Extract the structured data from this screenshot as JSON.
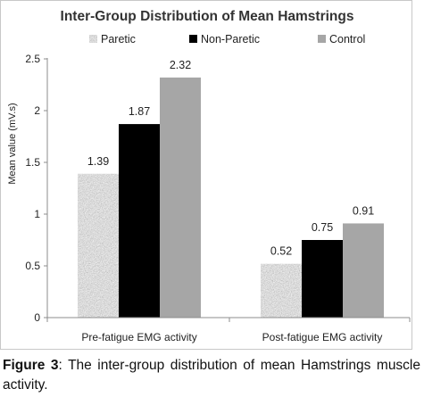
{
  "caption": {
    "label": "Figure 3",
    "text": ": The inter-group distribution of mean Hamstrings muscle activity."
  },
  "colors": {
    "paretic": "#aaaaaa",
    "non_paretic": "#000000",
    "control": "#a6a6a6",
    "axis": "#8c8c8c"
  },
  "chart_data": {
    "type": "bar",
    "title": "Inter-Group Distribution of Mean Hamstrings",
    "xlabel": "",
    "ylabel": "Mean value (mV.s)",
    "categories": [
      "Pre-fatigue EMG activity",
      "Post-fatigue EMG activity"
    ],
    "series": [
      {
        "name": "Paretic",
        "values": [
          1.39,
          0.52
        ],
        "labels": [
          "1.39",
          "0.52"
        ]
      },
      {
        "name": "Non-Paretic",
        "values": [
          1.87,
          0.75
        ],
        "labels": [
          "1.87",
          "0.75"
        ]
      },
      {
        "name": "Control",
        "values": [
          2.32,
          0.91
        ],
        "labels": [
          "2.32",
          "0.91"
        ]
      }
    ],
    "ylim": [
      0,
      2.5
    ],
    "yticks": [
      "0",
      "0.5",
      "1",
      "1.5",
      "2",
      "2.5"
    ],
    "grid": false,
    "legend_position": "top"
  }
}
